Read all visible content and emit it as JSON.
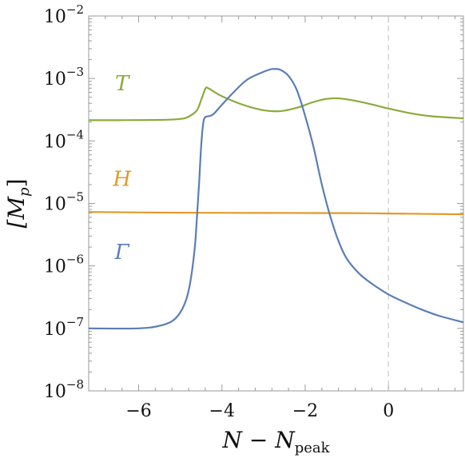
{
  "chart_data": {
    "type": "line",
    "title": "",
    "xlabel_main": "N − N",
    "xlabel_sub": "peak",
    "ylabel_main": "[M",
    "ylabel_sub": "p",
    "ylabel_close": "]",
    "xlim": [
      -7.2,
      1.8
    ],
    "ylim_log10": [
      -8,
      -2
    ],
    "y_scale": "log",
    "grid": false,
    "x_ticks": [
      {
        "value": -6,
        "label": "−6"
      },
      {
        "value": -4,
        "label": "−4"
      },
      {
        "value": -2,
        "label": "−2"
      },
      {
        "value": 0,
        "label": "0"
      }
    ],
    "y_ticks": [
      {
        "exp": -8,
        "base": "10",
        "power": "−8"
      },
      {
        "exp": -7,
        "base": "10",
        "power": "−7"
      },
      {
        "exp": -6,
        "base": "10",
        "power": "−6"
      },
      {
        "exp": -5,
        "base": "10",
        "power": "−5"
      },
      {
        "exp": -4,
        "base": "10",
        "power": "−4"
      },
      {
        "exp": -3,
        "base": "10",
        "power": "−3"
      },
      {
        "exp": -2,
        "base": "10",
        "power": "−2"
      }
    ],
    "vertical_reference_line": {
      "x": 0,
      "style": "dashed",
      "color": "#cccccc"
    },
    "series": [
      {
        "name": "T",
        "color": "#8aab3a",
        "label_at": {
          "x": -6.4,
          "y": 0.00065
        },
        "points": [
          [
            -7.2,
            0.000215
          ],
          [
            -6.5,
            0.000215
          ],
          [
            -5.5,
            0.000217
          ],
          [
            -5.0,
            0.000225
          ],
          [
            -4.8,
            0.000245
          ],
          [
            -4.6,
            0.00031
          ],
          [
            -4.5,
            0.00045
          ],
          [
            -4.4,
            0.00068
          ],
          [
            -4.35,
            0.00071
          ],
          [
            -4.2,
            0.00062
          ],
          [
            -4.0,
            0.00052
          ],
          [
            -3.5,
            0.00038
          ],
          [
            -3.0,
            0.00031
          ],
          [
            -2.6,
            0.0003
          ],
          [
            -2.2,
            0.00034
          ],
          [
            -1.8,
            0.00042
          ],
          [
            -1.5,
            0.00047
          ],
          [
            -1.2,
            0.00048
          ],
          [
            -0.8,
            0.00044
          ],
          [
            -0.3,
            0.00037
          ],
          [
            0.0,
            0.00033
          ],
          [
            0.5,
            0.00028
          ],
          [
            1.0,
            0.00025
          ],
          [
            1.8,
            0.00023
          ]
        ]
      },
      {
        "name": "H",
        "color": "#e19a28",
        "label_at": {
          "x": -6.4,
          "y": 1.9e-05
        },
        "points": [
          [
            -7.2,
            7.3e-06
          ],
          [
            -5.0,
            7.1e-06
          ],
          [
            -3.0,
            7.05e-06
          ],
          [
            -1.0,
            7e-06
          ],
          [
            0.0,
            6.9e-06
          ],
          [
            1.8,
            6.7e-06
          ]
        ]
      },
      {
        "name": "Γ",
        "color": "#5b7db8",
        "label_at": {
          "x": -6.4,
          "y": 1.3e-06
        },
        "points": [
          [
            -7.2,
            1e-07
          ],
          [
            -6.0,
            1e-07
          ],
          [
            -5.5,
            1.1e-07
          ],
          [
            -5.2,
            1.3e-07
          ],
          [
            -5.0,
            1.8e-07
          ],
          [
            -4.85,
            3e-07
          ],
          [
            -4.75,
            6e-07
          ],
          [
            -4.65,
            2e-06
          ],
          [
            -4.6,
            6e-06
          ],
          [
            -4.55,
            2e-05
          ],
          [
            -4.5,
            8e-05
          ],
          [
            -4.45,
            0.00019
          ],
          [
            -4.4,
            0.00024
          ],
          [
            -4.3,
            0.00025
          ],
          [
            -4.2,
            0.00027
          ],
          [
            -4.0,
            0.00038
          ],
          [
            -3.7,
            0.00062
          ],
          [
            -3.4,
            0.00095
          ],
          [
            -3.1,
            0.0012
          ],
          [
            -2.85,
            0.00139
          ],
          [
            -2.75,
            0.00142
          ],
          [
            -2.6,
            0.00138
          ],
          [
            -2.4,
            0.0011
          ],
          [
            -2.2,
            0.00065
          ],
          [
            -2.0,
            0.00025
          ],
          [
            -1.8,
            8e-05
          ],
          [
            -1.6,
            2e-05
          ],
          [
            -1.4,
            6.3e-06
          ],
          [
            -1.2,
            2.5e-06
          ],
          [
            -1.0,
            1.3e-06
          ],
          [
            -0.7,
            7.5e-07
          ],
          [
            -0.4,
            5.2e-07
          ],
          [
            0.0,
            3.5e-07
          ],
          [
            0.4,
            2.6e-07
          ],
          [
            0.8,
            2e-07
          ],
          [
            1.2,
            1.6e-07
          ],
          [
            1.8,
            1.25e-07
          ]
        ]
      }
    ]
  }
}
